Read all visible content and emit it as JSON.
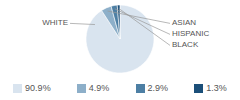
{
  "chart_data": {
    "type": "pie",
    "categories": [
      "WHITE",
      "ASIAN",
      "HISPANIC",
      "BLACK"
    ],
    "values": [
      90.9,
      4.9,
      2.9,
      1.3
    ],
    "value_labels": [
      "90.9%",
      "4.9%",
      "2.9%",
      "1.3%"
    ],
    "colors": [
      "#d9e4ef",
      "#8dafc9",
      "#4d7fa4",
      "#1b4f79"
    ],
    "legend": "bottom"
  }
}
